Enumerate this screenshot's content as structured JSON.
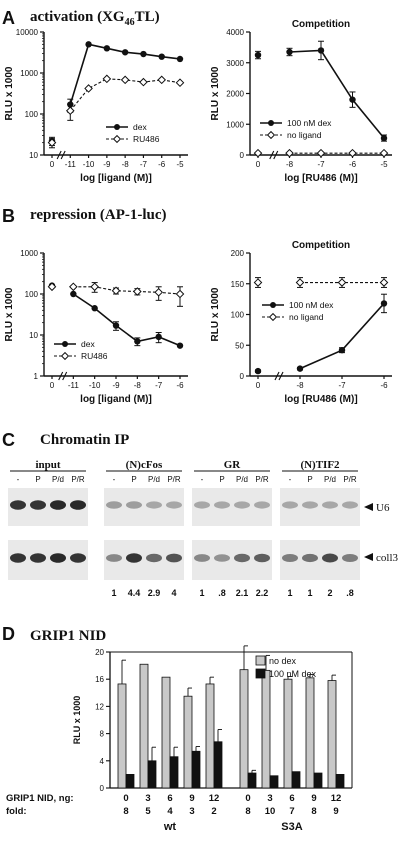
{
  "panels": {
    "A": {
      "letter": "A",
      "title_main": "activation (XG",
      "title_sub": "46",
      "title_end": "TL)"
    },
    "B": {
      "letter": "B",
      "title": "repression (AP-1-luc)"
    },
    "C": {
      "letter": "C",
      "title": "Chromatin IP"
    },
    "D": {
      "letter": "D",
      "title": "GRIP1 NID"
    }
  },
  "chart_data": [
    {
      "id": "A_left",
      "type": "line",
      "title": "",
      "ylabel": "RLU x 1000",
      "xlabel": "log [ligand (M)]",
      "yscale": "log",
      "ylim": [
        10,
        10000
      ],
      "yticks": [
        "10",
        "100",
        "1000",
        "10000"
      ],
      "xticks": [
        "0",
        "-11",
        "-10",
        "-9",
        "-8",
        "-7",
        "-6",
        "-5"
      ],
      "x": [
        "0",
        "-11",
        "-10",
        "-9",
        "-8",
        "-7",
        "-6",
        "-5"
      ],
      "legend_position": "bottom-right",
      "series": [
        {
          "name": "dex",
          "values": [
            22,
            170,
            5000,
            4000,
            3200,
            2900,
            2500,
            2200
          ],
          "errors": [
            5,
            60,
            0,
            0,
            0,
            0,
            0,
            0
          ]
        },
        {
          "name": "RU486",
          "values": [
            20,
            120,
            420,
            720,
            680,
            600,
            680,
            580
          ],
          "errors": [
            5,
            50,
            0,
            0,
            0,
            0,
            0,
            0
          ]
        }
      ]
    },
    {
      "id": "A_right",
      "type": "line",
      "title": "Competition",
      "ylabel": "RLU x 1000",
      "xlabel": "log [RU486 (M)]",
      "yscale": "linear",
      "ylim": [
        0,
        4000
      ],
      "yticks": [
        "0",
        "1000",
        "2000",
        "3000",
        "4000"
      ],
      "xticks": [
        "0",
        "-8",
        "-7",
        "-6",
        "-5"
      ],
      "x": [
        "0",
        "-8",
        "-7",
        "-6",
        "-5"
      ],
      "legend_position": "bottom-left",
      "series": [
        {
          "name": "100 nM dex",
          "values": [
            3250,
            3350,
            3400,
            1800,
            550
          ],
          "errors": [
            120,
            120,
            300,
            250,
            100
          ]
        },
        {
          "name": "no ligand",
          "values": [
            60,
            60,
            60,
            60,
            60
          ],
          "errors": [
            0,
            0,
            0,
            0,
            0
          ]
        }
      ]
    },
    {
      "id": "B_left",
      "type": "line",
      "title": "",
      "ylabel": "RLU x 1000",
      "xlabel": "log [ligand (M)]",
      "yscale": "log",
      "ylim": [
        1,
        1000
      ],
      "yticks": [
        "1",
        "10",
        "100",
        "1000"
      ],
      "xticks": [
        "0",
        "-11",
        "-10",
        "-9",
        "-8",
        "-7",
        "-6"
      ],
      "x": [
        "0",
        "-11",
        "-10",
        "-9",
        "-8",
        "-7",
        "-6"
      ],
      "legend_position": "bottom-left",
      "series": [
        {
          "name": "dex",
          "values": [
            160,
            100,
            45,
            17,
            7,
            9,
            5.5
          ],
          "errors": [
            0,
            0,
            0,
            4,
            1.5,
            2.5,
            0
          ]
        },
        {
          "name": "RU486",
          "values": [
            150,
            150,
            150,
            120,
            115,
            110,
            100
          ],
          "errors": [
            0,
            0,
            40,
            20,
            20,
            40,
            50
          ]
        }
      ]
    },
    {
      "id": "B_right",
      "type": "line",
      "title": "Competition",
      "ylabel": "RLU x 1000",
      "xlabel": "log [RU486 (M)]",
      "yscale": "linear",
      "ylim": [
        0,
        200
      ],
      "yticks": [
        "0",
        "50",
        "100",
        "150",
        "200"
      ],
      "xticks": [
        "0",
        "-8",
        "-7",
        "-6"
      ],
      "x": [
        "0",
        "-8",
        "-7",
        "-6"
      ],
      "legend_position": "middle-right",
      "series": [
        {
          "name": "100 nM dex",
          "values": [
            8,
            12,
            42,
            118
          ],
          "errors": [
            2,
            2,
            4,
            15
          ]
        },
        {
          "name": "no ligand",
          "values": [
            152,
            152,
            152,
            152
          ],
          "errors": [
            8,
            8,
            8,
            8
          ]
        }
      ]
    },
    {
      "id": "D",
      "type": "bar",
      "title": "",
      "ylabel": "RLU x 1000",
      "xlabel": "",
      "ylim": [
        0,
        20
      ],
      "yticks": [
        "0",
        "4",
        "8",
        "12",
        "16",
        "20"
      ],
      "row_labels": {
        "amount": "GRIP1 NID, ng:",
        "fold": "fold:"
      },
      "groups": [
        {
          "name": "wt",
          "categories": [
            "0",
            "3",
            "6",
            "9",
            "12"
          ],
          "fold": [
            "8",
            "5",
            "4",
            "3",
            "2"
          ]
        },
        {
          "name": "S3A",
          "categories": [
            "0",
            "3",
            "6",
            "9",
            "12"
          ],
          "fold": [
            "8",
            "10",
            "7",
            "8",
            "9"
          ]
        }
      ],
      "legend_position": "top-right",
      "series": [
        {
          "name": "no dex",
          "color": "#c8c8c8",
          "values": [
            15.3,
            18.2,
            16.3,
            13.5,
            15.3,
            17.4,
            17.3,
            16.0,
            16.2,
            15.8
          ],
          "errors": [
            3.5,
            0,
            0,
            1.2,
            1.0,
            3.5,
            2.2,
            0.4,
            0.5,
            0.8
          ]
        },
        {
          "name": "100 nM dex",
          "color": "#111111",
          "values": [
            2.0,
            4.0,
            4.6,
            5.4,
            6.8,
            2.2,
            1.8,
            2.4,
            2.2,
            2.0
          ],
          "errors": [
            0,
            2.0,
            1.4,
            0.7,
            1.8,
            0.4,
            0,
            0,
            0,
            0
          ]
        }
      ]
    }
  ],
  "chip": {
    "groups": [
      {
        "name": "input",
        "lanes": [
          "-",
          "P",
          "P/d",
          "P/R"
        ],
        "u6": [
          0.85,
          0.85,
          0.9,
          0.9
        ],
        "coll3": [
          0.85,
          0.85,
          0.9,
          0.85
        ]
      },
      {
        "name": "(N)cFos",
        "lanes": [
          "-",
          "P",
          "P/d",
          "P/R"
        ],
        "u6": [
          0.35,
          0.35,
          0.3,
          0.3
        ],
        "coll3": [
          0.45,
          0.85,
          0.6,
          0.7
        ]
      },
      {
        "name": "GR",
        "lanes": [
          "-",
          "P",
          "P/d",
          "P/R"
        ],
        "u6": [
          0.3,
          0.3,
          0.3,
          0.3
        ],
        "coll3": [
          0.45,
          0.4,
          0.6,
          0.65
        ]
      },
      {
        "name": "(N)TIF2",
        "lanes": [
          "-",
          "P",
          "P/d",
          "P/R"
        ],
        "u6": [
          0.3,
          0.3,
          0.3,
          0.3
        ],
        "coll3": [
          0.5,
          0.55,
          0.75,
          0.5
        ]
      }
    ],
    "band_labels": [
      "U6",
      "coll3"
    ],
    "quant": [
      [
        "",
        "",
        "",
        ""
      ],
      [
        "1",
        "4.4",
        "2.9",
        "4"
      ],
      [
        "1",
        ".8",
        "2.1",
        "2.2"
      ],
      [
        "1",
        "1",
        "2",
        ".8"
      ]
    ]
  }
}
